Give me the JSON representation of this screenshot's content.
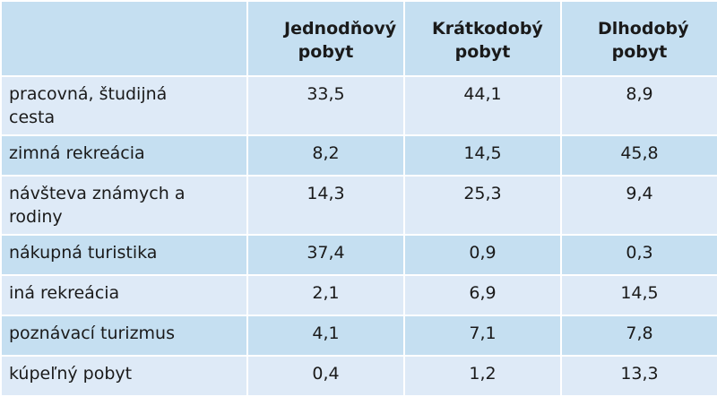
{
  "table": {
    "headers": [
      "",
      "Jednodňový pobyt",
      "Krátkodobý pobyt",
      "Dlhodobý pobyt"
    ],
    "rows": [
      {
        "label": "pracovná, študijná cesta",
        "values": [
          "33,5",
          "44,1",
          "8,9"
        ]
      },
      {
        "label": "zimná rekreácia",
        "values": [
          "8,2",
          "14,5",
          "45,8"
        ]
      },
      {
        "label": "návšteva známych a rodiny",
        "values": [
          "14,3",
          "25,3",
          "9,4"
        ]
      },
      {
        "label": "nákupná turistika",
        "values": [
          "37,4",
          "0,9",
          "0,3"
        ]
      },
      {
        "label": "iná rekreácia",
        "values": [
          "2,1",
          "6,9",
          "14,5"
        ]
      },
      {
        "label": "poznávací turizmus",
        "values": [
          "4,1",
          "7,1",
          "7,8"
        ]
      },
      {
        "label": "kúpeľný pobyt",
        "values": [
          "0,4",
          "1,2",
          "13,3"
        ]
      }
    ]
  }
}
